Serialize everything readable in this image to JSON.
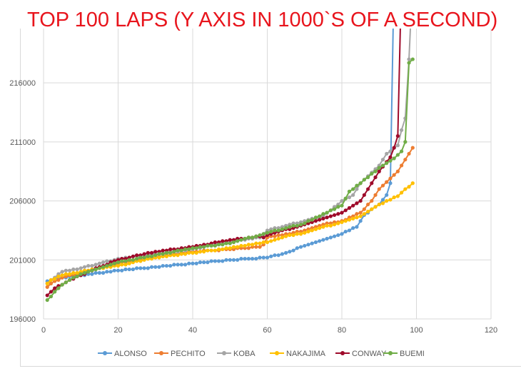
{
  "chart_data": {
    "type": "line",
    "title": "TOP 100 LAPS (Y AXIS IN 1000`S OF A SECOND)",
    "xlabel": "",
    "ylabel": "",
    "xlim": [
      0,
      120
    ],
    "ylim": [
      196000,
      220000
    ],
    "xticks": [
      0,
      20,
      40,
      60,
      80,
      100,
      120
    ],
    "yticks": [
      196000,
      201000,
      206000,
      211000,
      216000
    ],
    "grid": true,
    "legend_position": "bottom",
    "series": [
      {
        "name": "ALONSO",
        "color": "#5b9bd5",
        "values": [
          199200,
          199300,
          199400,
          199400,
          199500,
          199500,
          199600,
          199600,
          199700,
          199700,
          199700,
          199800,
          199800,
          199900,
          199900,
          199900,
          200000,
          200000,
          200100,
          200100,
          200100,
          200200,
          200200,
          200200,
          200300,
          200300,
          200300,
          200300,
          200400,
          200400,
          200400,
          200500,
          200500,
          200500,
          200600,
          200600,
          200600,
          200600,
          200700,
          200700,
          200700,
          200800,
          200800,
          200800,
          200900,
          200900,
          200900,
          200900,
          201000,
          201000,
          201000,
          201000,
          201100,
          201100,
          201100,
          201100,
          201100,
          201200,
          201200,
          201200,
          201300,
          201400,
          201400,
          201500,
          201600,
          201700,
          201800,
          202000,
          202100,
          202200,
          202300,
          202400,
          202500,
          202600,
          202700,
          202800,
          202900,
          203000,
          203100,
          203200,
          203400,
          203500,
          203700,
          203800,
          204300,
          204800,
          205000,
          205300,
          205500,
          205700,
          206100,
          206500,
          207500,
          225000
        ]
      },
      {
        "name": "PECHITO",
        "color": "#ed7d31",
        "values": [
          198700,
          199000,
          199200,
          199300,
          199500,
          199600,
          199700,
          199700,
          199800,
          199900,
          200000,
          200100,
          200100,
          200200,
          200300,
          200400,
          200500,
          200500,
          200600,
          200700,
          200800,
          200800,
          200900,
          200900,
          201000,
          201000,
          201100,
          201100,
          201200,
          201200,
          201300,
          201300,
          201400,
          201400,
          201500,
          201500,
          201600,
          201600,
          201700,
          201700,
          201700,
          201700,
          201800,
          201800,
          201800,
          201800,
          201800,
          201900,
          201900,
          201900,
          201900,
          202000,
          202000,
          202000,
          202000,
          202100,
          202100,
          202100,
          202300,
          202900,
          203000,
          203000,
          203100,
          203100,
          203200,
          203200,
          203300,
          203400,
          203400,
          203500,
          203600,
          203700,
          203800,
          203900,
          204000,
          204100,
          204100,
          204200,
          204200,
          204300,
          204400,
          204600,
          204700,
          204900,
          205000,
          205300,
          205700,
          206000,
          206500,
          207000,
          207300,
          207600,
          207900,
          208200,
          208500,
          209000,
          209500,
          210000,
          210500
        ]
      },
      {
        "name": "KOBA",
        "color": "#a5a5a5",
        "values": [
          199000,
          199300,
          199500,
          199800,
          200000,
          200100,
          200100,
          200200,
          200200,
          200300,
          200400,
          200500,
          200500,
          200600,
          200700,
          200800,
          200900,
          200900,
          201000,
          201100,
          201100,
          201200,
          201200,
          201300,
          201300,
          201300,
          201400,
          201400,
          201500,
          201500,
          201500,
          201600,
          201600,
          201700,
          201700,
          201700,
          201800,
          201800,
          201900,
          201900,
          202000,
          202000,
          202100,
          202200,
          202200,
          202300,
          202400,
          202400,
          202500,
          202600,
          202600,
          202600,
          202700,
          202700,
          202800,
          202800,
          202900,
          202900,
          203200,
          203500,
          203600,
          203700,
          203700,
          203800,
          203900,
          204000,
          204100,
          204100,
          204200,
          204300,
          204400,
          204500,
          204500,
          204600,
          204700,
          205000,
          205200,
          205500,
          205700,
          206000,
          206200,
          206300,
          206500,
          207000,
          207500,
          207800,
          208100,
          208400,
          208700,
          209000,
          209500,
          210000,
          210200,
          210500,
          210700,
          212000,
          213000,
          218000,
          225000
        ]
      },
      {
        "name": "NAKAJIMA",
        "color": "#ffc000",
        "values": [
          199000,
          199300,
          199400,
          199600,
          199700,
          199800,
          199800,
          199900,
          199900,
          200000,
          200100,
          200100,
          200200,
          200200,
          200300,
          200300,
          200400,
          200400,
          200500,
          200500,
          200600,
          200600,
          200700,
          200800,
          200900,
          200900,
          201000,
          201100,
          201100,
          201200,
          201200,
          201300,
          201300,
          201400,
          201400,
          201400,
          201500,
          201500,
          201600,
          201600,
          201600,
          201700,
          201700,
          201800,
          201800,
          201800,
          201900,
          201900,
          202000,
          202000,
          202100,
          202100,
          202200,
          202200,
          202300,
          202300,
          202400,
          202400,
          202500,
          202500,
          202600,
          202700,
          202800,
          202900,
          203000,
          203100,
          203100,
          203200,
          203200,
          203300,
          203400,
          203500,
          203600,
          203700,
          203800,
          203900,
          203900,
          204000,
          204100,
          204200,
          204300,
          204400,
          204500,
          204600,
          204700,
          204900,
          205100,
          205300,
          205500,
          205700,
          205800,
          206000,
          206100,
          206300,
          206400,
          206700,
          207000,
          207200,
          207500
        ]
      },
      {
        "name": "CONWAY",
        "color": "#9e0a2a",
        "values": [
          198000,
          198300,
          198600,
          198800,
          198900,
          199100,
          199300,
          199400,
          199600,
          199700,
          199800,
          200000,
          200100,
          200300,
          200400,
          200500,
          200600,
          200800,
          200900,
          201000,
          201100,
          201100,
          201200,
          201300,
          201400,
          201400,
          201500,
          201600,
          201600,
          201700,
          201700,
          201800,
          201800,
          201900,
          201900,
          201900,
          202000,
          202000,
          202100,
          202100,
          202200,
          202200,
          202300,
          202300,
          202400,
          202500,
          202500,
          202600,
          202600,
          202700,
          202700,
          202800,
          202800,
          202800,
          202900,
          202900,
          203000,
          203000,
          202900,
          203100,
          203200,
          203300,
          203400,
          203500,
          203600,
          203600,
          203700,
          203800,
          203900,
          204000,
          204100,
          204200,
          204300,
          204400,
          204500,
          204600,
          204700,
          204800,
          204900,
          205000,
          205200,
          205400,
          205600,
          205800,
          206000,
          206500,
          207000,
          207500,
          208000,
          208500,
          208900,
          209300,
          209700,
          210500,
          211500,
          225000
        ]
      },
      {
        "name": "BUEMI",
        "color": "#70ad47",
        "values": [
          197600,
          197900,
          198300,
          198600,
          198900,
          199100,
          199300,
          199500,
          199600,
          199800,
          199900,
          200000,
          200100,
          200200,
          200300,
          200400,
          200500,
          200600,
          200700,
          200800,
          200900,
          200900,
          201000,
          201000,
          201100,
          201200,
          201200,
          201300,
          201300,
          201400,
          201500,
          201500,
          201600,
          201600,
          201700,
          201800,
          201800,
          201900,
          201900,
          202000,
          202000,
          202100,
          202100,
          202200,
          202200,
          202200,
          202300,
          202300,
          202400,
          202400,
          202500,
          202600,
          202700,
          202800,
          202900,
          202900,
          203000,
          203100,
          203200,
          203300,
          203400,
          203500,
          203500,
          203600,
          203700,
          203800,
          203900,
          203900,
          204000,
          204100,
          204300,
          204400,
          204600,
          204700,
          204900,
          205000,
          205200,
          205300,
          205500,
          205600,
          206200,
          206800,
          207000,
          207300,
          207500,
          207800,
          208000,
          208300,
          208500,
          208800,
          209000,
          209200,
          209400,
          209600,
          209900,
          210200,
          211000,
          217700,
          218000
        ]
      }
    ]
  }
}
